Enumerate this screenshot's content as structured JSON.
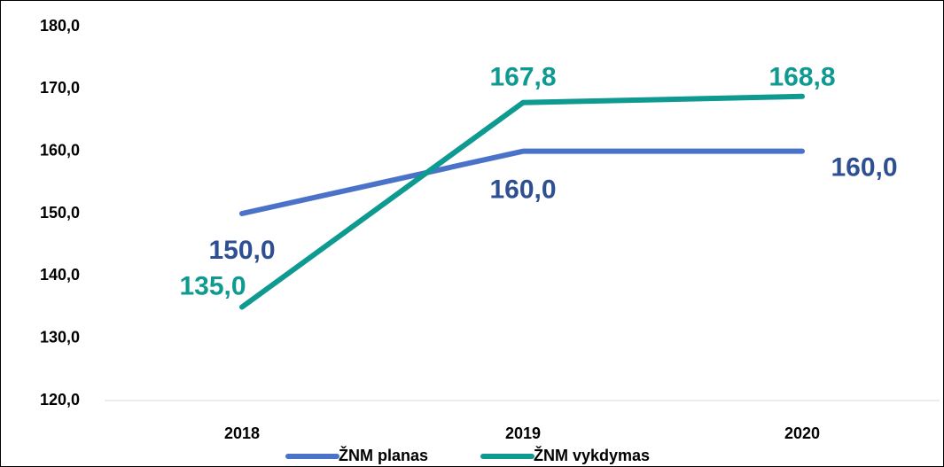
{
  "chart_data": {
    "type": "line",
    "categories": [
      "2018",
      "2019",
      "2020"
    ],
    "series": [
      {
        "name": "ŽNM planas",
        "color": "#4a72c8",
        "label_color": "#2e4f92",
        "values": [
          150.0,
          160.0,
          160.0
        ],
        "value_labels": [
          "150,0",
          "160,0",
          "160,0"
        ]
      },
      {
        "name": "ŽNM vykdymas",
        "color": "#0e9a90",
        "label_color": "#0e9a90",
        "values": [
          135.0,
          167.8,
          168.8
        ],
        "value_labels": [
          "135,0",
          "167,8",
          "168,8"
        ]
      }
    ],
    "ylim": [
      120,
      180
    ],
    "yticks": [
      {
        "value": 120,
        "label": "120,0"
      },
      {
        "value": 130,
        "label": "130,0"
      },
      {
        "value": 140,
        "label": "140,0"
      },
      {
        "value": 150,
        "label": "150,0"
      },
      {
        "value": 160,
        "label": "160,0"
      },
      {
        "value": 170,
        "label": "170,0"
      },
      {
        "value": 180,
        "label": "180,0"
      }
    ],
    "legend": "bottom"
  }
}
